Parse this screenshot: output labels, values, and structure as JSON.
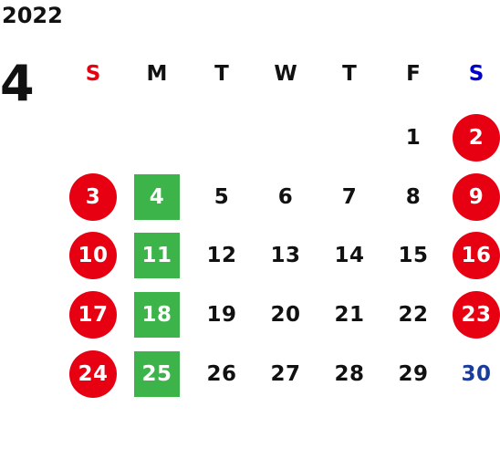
{
  "calendar": {
    "year": "2022",
    "month": "4",
    "weekdays": [
      {
        "label": "S",
        "color": "#e60012"
      },
      {
        "label": "M",
        "color": "#111111"
      },
      {
        "label": "T",
        "color": "#111111"
      },
      {
        "label": "W",
        "color": "#111111"
      },
      {
        "label": "T",
        "color": "#111111"
      },
      {
        "label": "F",
        "color": "#111111"
      },
      {
        "label": "S",
        "color": "#0000cc"
      }
    ],
    "weeks": [
      [
        {
          "day": "",
          "style": "empty"
        },
        {
          "day": "",
          "style": "empty"
        },
        {
          "day": "",
          "style": "empty"
        },
        {
          "day": "",
          "style": "empty"
        },
        {
          "day": "",
          "style": "empty"
        },
        {
          "day": "1",
          "style": "plain"
        },
        {
          "day": "2",
          "style": "red-circle"
        }
      ],
      [
        {
          "day": "3",
          "style": "red-circle"
        },
        {
          "day": "4",
          "style": "green-square"
        },
        {
          "day": "5",
          "style": "plain"
        },
        {
          "day": "6",
          "style": "plain"
        },
        {
          "day": "7",
          "style": "plain"
        },
        {
          "day": "8",
          "style": "plain"
        },
        {
          "day": "9",
          "style": "red-circle"
        }
      ],
      [
        {
          "day": "10",
          "style": "red-circle"
        },
        {
          "day": "11",
          "style": "green-square"
        },
        {
          "day": "12",
          "style": "plain"
        },
        {
          "day": "13",
          "style": "plain"
        },
        {
          "day": "14",
          "style": "plain"
        },
        {
          "day": "15",
          "style": "plain"
        },
        {
          "day": "16",
          "style": "red-circle"
        }
      ],
      [
        {
          "day": "17",
          "style": "red-circle"
        },
        {
          "day": "18",
          "style": "green-square"
        },
        {
          "day": "19",
          "style": "plain"
        },
        {
          "day": "20",
          "style": "plain"
        },
        {
          "day": "21",
          "style": "plain"
        },
        {
          "day": "22",
          "style": "plain"
        },
        {
          "day": "23",
          "style": "red-circle"
        }
      ],
      [
        {
          "day": "24",
          "style": "red-circle"
        },
        {
          "day": "25",
          "style": "green-square"
        },
        {
          "day": "26",
          "style": "plain"
        },
        {
          "day": "27",
          "style": "plain"
        },
        {
          "day": "28",
          "style": "plain"
        },
        {
          "day": "29",
          "style": "plain"
        },
        {
          "day": "30",
          "style": "blue-text"
        }
      ]
    ]
  },
  "colors": {
    "holiday_red": "#e60012",
    "highlight_green": "#3cb44a",
    "saturday_blue": "#1a3d9c",
    "text_dark": "#111111",
    "text_light": "#ffffff"
  }
}
